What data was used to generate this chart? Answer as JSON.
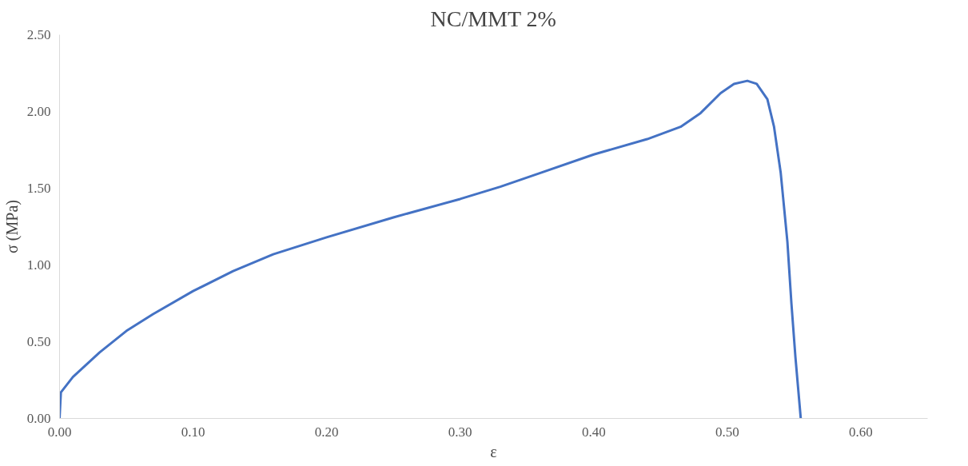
{
  "chart_data": {
    "type": "line",
    "title": "NC/MMT 2%",
    "xlabel": "ε",
    "ylabel": "σ (MPa)",
    "series": [
      {
        "color": "#4472c4",
        "x": [
          0,
          0.001,
          0.01,
          0.03,
          0.05,
          0.07,
          0.1,
          0.13,
          0.16,
          0.2,
          0.25,
          0.3,
          0.33,
          0.36,
          0.4,
          0.44,
          0.465,
          0.48,
          0.495,
          0.505,
          0.515,
          0.522,
          0.53,
          0.535,
          0.54,
          0.545,
          0.548,
          0.551,
          0.553,
          0.555
        ],
        "values": [
          0,
          0.17,
          0.27,
          0.43,
          0.57,
          0.68,
          0.83,
          0.96,
          1.07,
          1.18,
          1.31,
          1.43,
          1.51,
          1.6,
          1.72,
          1.82,
          1.9,
          1.99,
          2.12,
          2.18,
          2.2,
          2.18,
          2.08,
          1.9,
          1.6,
          1.15,
          0.75,
          0.4,
          0.2,
          0
        ]
      }
    ],
    "xlim": [
      0,
      0.65
    ],
    "ylim": [
      0,
      2.5
    ],
    "xticks": [
      {
        "value": 0,
        "label": "0.00"
      },
      {
        "value": 0.1,
        "label": "0.10"
      },
      {
        "value": 0.2,
        "label": "0.20"
      },
      {
        "value": 0.3,
        "label": "0.30"
      },
      {
        "value": 0.4,
        "label": "0.40"
      },
      {
        "value": 0.5,
        "label": "0.50"
      },
      {
        "value": 0.6,
        "label": "0.60"
      }
    ],
    "yticks": [
      {
        "value": 0,
        "label": "0.00"
      },
      {
        "value": 0.5,
        "label": "0.50"
      },
      {
        "value": 1,
        "label": "1.00"
      },
      {
        "value": 1.5,
        "label": "1.50"
      },
      {
        "value": 2,
        "label": "2.00"
      },
      {
        "value": 2.5,
        "label": "2.50"
      }
    ],
    "grid": false,
    "marker": "none",
    "line_style": "solid"
  }
}
